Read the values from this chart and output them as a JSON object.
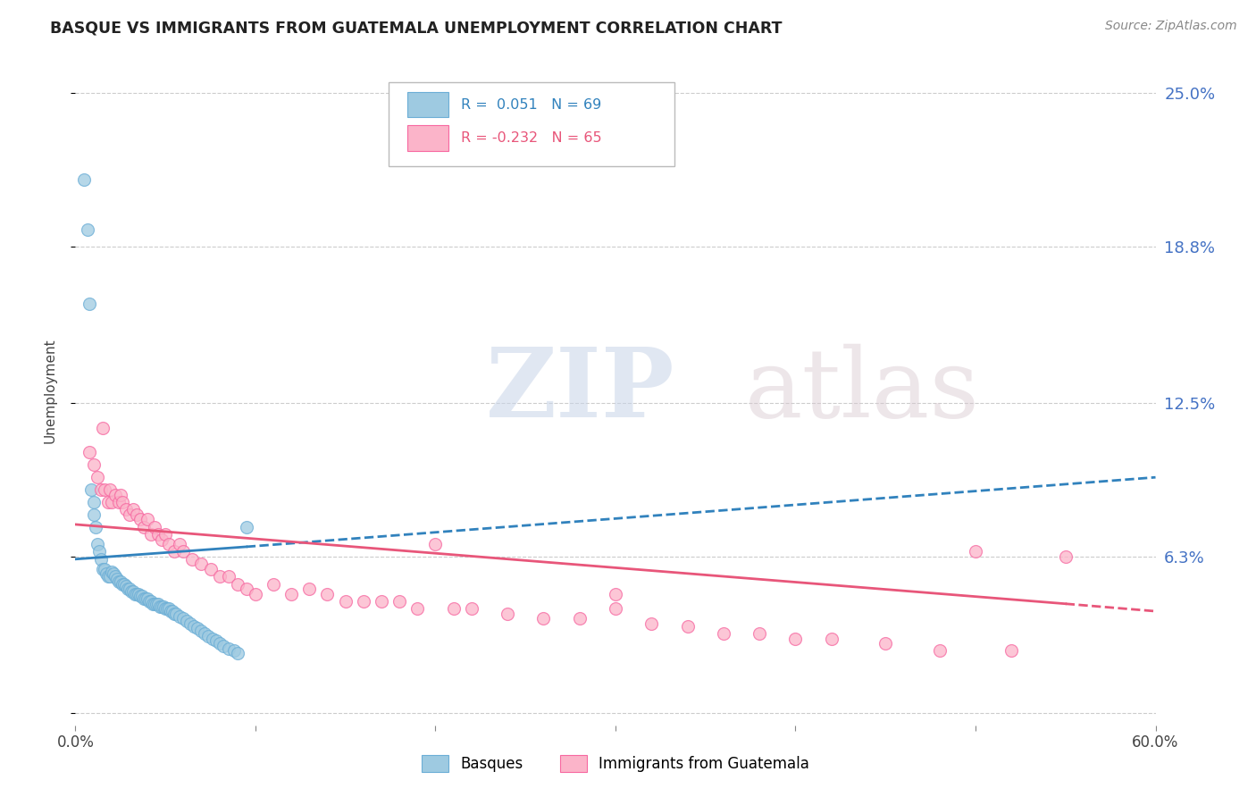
{
  "title": "BASQUE VS IMMIGRANTS FROM GUATEMALA UNEMPLOYMENT CORRELATION CHART",
  "source_text": "Source: ZipAtlas.com",
  "ylabel": "Unemployment",
  "xlim": [
    0.0,
    0.6
  ],
  "ylim": [
    -0.005,
    0.265
  ],
  "yticks": [
    0.0,
    0.063,
    0.125,
    0.188,
    0.25
  ],
  "ytick_labels": [
    "",
    "6.3%",
    "12.5%",
    "18.8%",
    "25.0%"
  ],
  "xticks": [
    0.0,
    0.1,
    0.2,
    0.3,
    0.4,
    0.5,
    0.6
  ],
  "grid_color": "#cccccc",
  "background_color": "#ffffff",
  "blue_color": "#9ecae1",
  "pink_color": "#fbb4c9",
  "blue_edge_color": "#6baed6",
  "pink_edge_color": "#f768a1",
  "blue_line_color": "#3182bd",
  "pink_line_color": "#e8567a",
  "legend_r_blue": "0.051",
  "legend_n_blue": "69",
  "legend_r_pink": "-0.232",
  "legend_n_pink": "65",
  "legend_label_blue": "Basques",
  "legend_label_pink": "Immigrants from Guatemala",
  "watermark_zip": "ZIP",
  "watermark_atlas": "atlas",
  "right_axis_color": "#4472c4",
  "blue_scatter_x": [
    0.005,
    0.007,
    0.008,
    0.009,
    0.01,
    0.01,
    0.011,
    0.012,
    0.013,
    0.014,
    0.015,
    0.016,
    0.017,
    0.018,
    0.019,
    0.02,
    0.021,
    0.022,
    0.023,
    0.024,
    0.025,
    0.026,
    0.027,
    0.028,
    0.029,
    0.03,
    0.031,
    0.032,
    0.033,
    0.034,
    0.035,
    0.036,
    0.037,
    0.038,
    0.039,
    0.04,
    0.041,
    0.042,
    0.043,
    0.044,
    0.045,
    0.046,
    0.047,
    0.048,
    0.049,
    0.05,
    0.051,
    0.052,
    0.053,
    0.054,
    0.055,
    0.056,
    0.058,
    0.06,
    0.062,
    0.064,
    0.066,
    0.068,
    0.07,
    0.072,
    0.074,
    0.076,
    0.078,
    0.08,
    0.082,
    0.085,
    0.088,
    0.09,
    0.095
  ],
  "blue_scatter_y": [
    0.215,
    0.195,
    0.165,
    0.09,
    0.085,
    0.08,
    0.075,
    0.068,
    0.065,
    0.062,
    0.058,
    0.058,
    0.056,
    0.055,
    0.055,
    0.057,
    0.056,
    0.055,
    0.054,
    0.053,
    0.053,
    0.052,
    0.052,
    0.051,
    0.05,
    0.05,
    0.049,
    0.049,
    0.048,
    0.048,
    0.048,
    0.047,
    0.047,
    0.046,
    0.046,
    0.046,
    0.045,
    0.045,
    0.044,
    0.044,
    0.044,
    0.044,
    0.043,
    0.043,
    0.043,
    0.042,
    0.042,
    0.042,
    0.041,
    0.041,
    0.04,
    0.04,
    0.039,
    0.038,
    0.037,
    0.036,
    0.035,
    0.034,
    0.033,
    0.032,
    0.031,
    0.03,
    0.029,
    0.028,
    0.027,
    0.026,
    0.025,
    0.024,
    0.075
  ],
  "pink_scatter_x": [
    0.008,
    0.01,
    0.012,
    0.014,
    0.015,
    0.016,
    0.018,
    0.019,
    0.02,
    0.022,
    0.024,
    0.025,
    0.026,
    0.028,
    0.03,
    0.032,
    0.034,
    0.036,
    0.038,
    0.04,
    0.042,
    0.044,
    0.046,
    0.048,
    0.05,
    0.052,
    0.055,
    0.058,
    0.06,
    0.065,
    0.07,
    0.075,
    0.08,
    0.085,
    0.09,
    0.095,
    0.1,
    0.11,
    0.12,
    0.13,
    0.14,
    0.15,
    0.16,
    0.17,
    0.18,
    0.19,
    0.2,
    0.21,
    0.22,
    0.24,
    0.26,
    0.28,
    0.3,
    0.32,
    0.34,
    0.36,
    0.38,
    0.4,
    0.42,
    0.45,
    0.48,
    0.5,
    0.52,
    0.55,
    0.3
  ],
  "pink_scatter_y": [
    0.105,
    0.1,
    0.095,
    0.09,
    0.115,
    0.09,
    0.085,
    0.09,
    0.085,
    0.088,
    0.085,
    0.088,
    0.085,
    0.082,
    0.08,
    0.082,
    0.08,
    0.078,
    0.075,
    0.078,
    0.072,
    0.075,
    0.072,
    0.07,
    0.072,
    0.068,
    0.065,
    0.068,
    0.065,
    0.062,
    0.06,
    0.058,
    0.055,
    0.055,
    0.052,
    0.05,
    0.048,
    0.052,
    0.048,
    0.05,
    0.048,
    0.045,
    0.045,
    0.045,
    0.045,
    0.042,
    0.068,
    0.042,
    0.042,
    0.04,
    0.038,
    0.038,
    0.042,
    0.036,
    0.035,
    0.032,
    0.032,
    0.03,
    0.03,
    0.028,
    0.025,
    0.065,
    0.025,
    0.063,
    0.048
  ],
  "blue_trend_x0": 0.0,
  "blue_trend_y0": 0.062,
  "blue_trend_x_solid_end": 0.095,
  "blue_trend_y_solid_end": 0.067,
  "blue_trend_x1": 0.6,
  "blue_trend_y1": 0.095,
  "pink_trend_x0": 0.0,
  "pink_trend_y0": 0.076,
  "pink_trend_x_solid_end": 0.55,
  "pink_trend_y_solid_end": 0.044,
  "pink_trend_x1": 0.6,
  "pink_trend_y1": 0.041
}
